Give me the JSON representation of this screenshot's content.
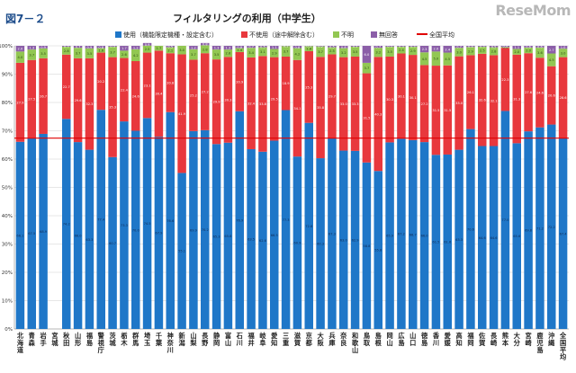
{
  "figure_label": "図7－２",
  "watermark": "ReseMom",
  "colors": {
    "use": "#1f77c8",
    "nonuse": "#e8383d",
    "unknown": "#92c752",
    "noanswer": "#8b5ea8",
    "average": "#e00000"
  },
  "legend": {
    "use": "使用（機能限定機種・設定含む）",
    "nonuse": "不使用（途中解除含む）",
    "unknown": "不明",
    "noanswer": "無回答",
    "average": "全国平均"
  },
  "chart_data": {
    "type": "bar",
    "stacked": true,
    "percent_stacked": true,
    "title": "フィルタリングの利用（中学生）",
    "ylim": [
      0,
      100
    ],
    "yticks": [
      "0%",
      "10%",
      "20%",
      "30%",
      "40%",
      "50%",
      "60%",
      "70%",
      "80%",
      "90%",
      "100%"
    ],
    "average_line": 67.4,
    "categories": [
      "北海道",
      "青森",
      "岩手",
      "宮城",
      "秋田",
      "山形",
      "福島",
      "警視庁",
      "茨城",
      "栃木",
      "群馬",
      "埼玉",
      "千葉",
      "神奈川",
      "新潟",
      "山梨",
      "長野",
      "静岡",
      "富山",
      "石川",
      "福井",
      "岐阜",
      "愛知",
      "三重",
      "滋賀",
      "京都",
      "大阪",
      "兵庫",
      "奈良",
      "和歌山",
      "鳥取",
      "島根",
      "岡山",
      "広島",
      "山口",
      "徳島",
      "香川",
      "愛媛",
      "高知",
      "福岡",
      "佐賀",
      "長崎",
      "熊本",
      "大分",
      "宮崎",
      "鹿児島",
      "沖縄",
      "全国平均"
    ],
    "series": [
      {
        "name": "使用（機能限定機種・設定含む）",
        "values": [
          66.1,
          67.5,
          68.9,
          null,
          74.2,
          66.0,
          63.3,
          77.4,
          60.7,
          73.3,
          70.0,
          74.5,
          67.9,
          76.6,
          55.1,
          69.9,
          70.2,
          65.3,
          65.8,
          76.9,
          63.5,
          62.6,
          66.5,
          77.3,
          60.9,
          72.8,
          60.3,
          67.3,
          63.0,
          62.9,
          58.8,
          55.8,
          65.9,
          67.2,
          66.7,
          66.0,
          61.5,
          61.6,
          63.3,
          70.6,
          64.6,
          64.6,
          77.0,
          65.6,
          69.8,
          71.2,
          72.2,
          67.4
        ]
      },
      {
        "name": "不使用（途中解除含む）",
        "values": [
          27.9,
          27.5,
          26.7,
          null,
          22.7,
          29.6,
          32.3,
          20.2,
          35.3,
          22.4,
          24.6,
          23.1,
          30.4,
          20.8,
          41.9,
          25.2,
          27.2,
          29.9,
          30.3,
          20.9,
          32.4,
          33.8,
          29.5,
          18.9,
          34.1,
          25.3,
          35.8,
          29.7,
          33.0,
          33.3,
          31.5,
          40.3,
          30.3,
          30.1,
          30.1,
          27.2,
          31.5,
          31.5,
          33.0,
          26.1,
          32.6,
          32.1,
          22.3,
          31.3,
          27.6,
          24.6,
          20.6,
          28.6
        ]
      },
      {
        "name": "不明",
        "values": [
          4.0,
          3.7,
          3.5,
          null,
          2.8,
          3.7,
          3.5,
          1.6,
          3.7,
          2.6,
          4.2,
          2.5,
          1.7,
          2.1,
          3.0,
          3.7,
          2.8,
          3.5,
          2.6,
          1.4,
          3.4,
          3.1,
          2.9,
          3.7,
          4.2,
          1.8,
          3.7,
          2.5,
          3.2,
          3.5,
          3.7,
          3.2,
          3.5,
          2.4,
          2.9,
          4.5,
          5.0,
          4.5,
          3.0,
          2.9,
          2.5,
          2.8,
          0.3,
          2.0,
          2.0,
          3.6,
          4.5,
          3.0
        ]
      },
      {
        "name": "無回答",
        "values": [
          2.0,
          1.3,
          0.9,
          null,
          0.3,
          0.7,
          0.9,
          0.8,
          0.3,
          1.7,
          1.2,
          0.9,
          0.0,
          0.5,
          0.0,
          1.2,
          0.8,
          1.3,
          1.3,
          0.8,
          0.7,
          0.5,
          1.1,
          0.1,
          0.8,
          0.1,
          0.2,
          0.5,
          0.8,
          0.3,
          6.0,
          0.7,
          0.3,
          0.3,
          0.3,
          2.3,
          2.0,
          2.4,
          0.7,
          0.4,
          0.3,
          0.5,
          0.4,
          1.1,
          0.6,
          0.6,
          2.7,
          1.0
        ]
      }
    ]
  }
}
